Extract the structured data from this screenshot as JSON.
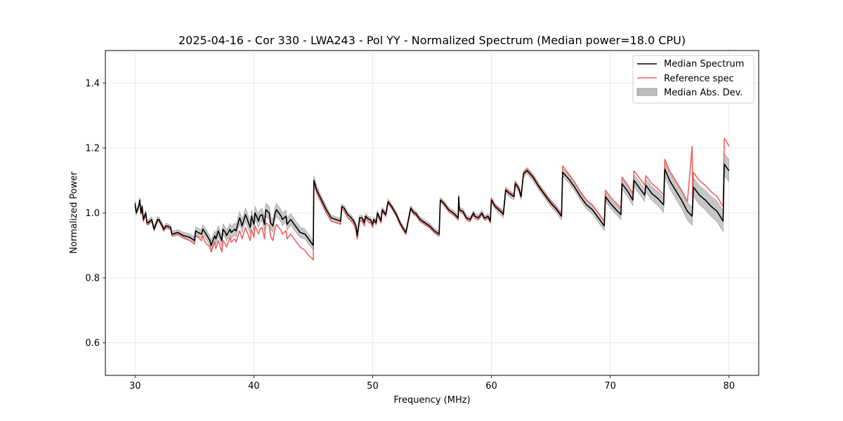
{
  "chart_data": {
    "type": "line",
    "title": "2025-04-16 - Cor 330 - LWA243 - Pol YY - Normalized Spectrum (Median power=18.0 CPU)",
    "xlabel": "Frequency (MHz)",
    "ylabel": "Normalized Power",
    "xlim": [
      27.5,
      82.5
    ],
    "ylim": [
      0.5,
      1.5
    ],
    "xticks": [
      30,
      40,
      50,
      60,
      70,
      80
    ],
    "yticks": [
      0.6,
      0.8,
      1.0,
      1.2,
      1.4
    ],
    "xtick_labels": [
      "30",
      "40",
      "50",
      "60",
      "70",
      "80"
    ],
    "ytick_labels": [
      "0.6",
      "0.8",
      "1.0",
      "1.2",
      "1.4"
    ],
    "grid": true,
    "legend_position": "top-right",
    "colors": {
      "median": "#000000",
      "reference": "#f06060",
      "mad_fill": "#bdbdbd",
      "mad_edge": "#9a9a9a",
      "overlap": "#8b1010"
    },
    "series": [
      {
        "name": "Median Spectrum",
        "x": [
          30.0,
          30.1,
          30.3,
          30.4,
          30.5,
          30.6,
          30.7,
          30.9,
          31.0,
          31.1,
          31.4,
          31.6,
          31.9,
          32.0,
          32.3,
          32.4,
          32.6,
          32.7,
          33.0,
          33.1,
          33.6,
          34.1,
          34.6,
          35.0,
          35.1,
          35.3,
          35.6,
          35.7,
          35.9,
          36.3,
          36.4,
          36.7,
          36.8,
          37.0,
          37.1,
          37.3,
          37.4,
          37.6,
          37.7,
          38.0,
          38.1,
          38.4,
          38.5,
          38.8,
          38.9,
          39.0,
          39.3,
          39.4,
          39.7,
          39.8,
          40.0,
          40.1,
          40.4,
          40.5,
          40.7,
          40.9,
          41.0,
          41.3,
          41.4,
          41.6,
          41.8,
          41.9,
          42.3,
          42.4,
          42.7,
          42.8,
          43.1,
          43.2,
          43.5,
          43.9,
          44.3,
          44.6,
          44.9,
          45.0,
          45.05,
          45.3,
          45.7,
          46.1,
          46.5,
          46.9,
          47.3,
          47.4,
          47.6,
          47.9,
          48.2,
          48.4,
          48.6,
          48.7,
          48.9,
          49.1,
          49.3,
          49.4,
          49.7,
          49.8,
          50.0,
          50.1,
          50.3,
          50.4,
          50.7,
          50.8,
          51.0,
          51.1,
          51.3,
          51.6,
          52.0,
          52.3,
          52.7,
          52.8,
          53.2,
          53.5,
          53.6,
          54.0,
          54.4,
          54.8,
          55.2,
          55.6,
          55.7,
          56.0,
          56.4,
          56.8,
          57.2,
          57.25,
          57.3,
          57.6,
          57.9,
          58.2,
          58.5,
          58.6,
          58.9,
          59.2,
          59.4,
          59.5,
          59.7,
          59.9,
          60.0,
          60.3,
          60.6,
          60.9,
          61.0,
          61.2,
          61.5,
          61.9,
          62.0,
          62.3,
          62.5,
          62.7,
          63.0,
          63.5,
          64.0,
          64.5,
          65.0,
          65.5,
          65.9,
          66.0,
          66.5,
          67.0,
          67.5,
          68.0,
          68.5,
          69.0,
          69.5,
          69.6,
          70.0,
          70.5,
          70.9,
          71.0,
          71.5,
          71.9,
          72.0,
          72.5,
          72.9,
          73.0,
          73.5,
          74.0,
          74.5,
          74.6,
          75.0,
          75.5,
          76.0,
          76.5,
          76.9,
          77.0,
          77.5,
          78.0,
          78.5,
          79.0,
          79.5,
          79.6,
          79.8,
          80.0
        ],
        "y": [
          1.03,
          1.0,
          1.02,
          1.04,
          1.0,
          1.02,
          0.98,
          1.0,
          0.97,
          0.97,
          0.98,
          0.95,
          0.98,
          0.98,
          0.96,
          0.95,
          0.96,
          0.96,
          0.955,
          0.935,
          0.94,
          0.93,
          0.925,
          0.915,
          0.945,
          0.94,
          0.935,
          0.95,
          0.94,
          0.915,
          0.9,
          0.93,
          0.92,
          0.945,
          0.935,
          0.915,
          0.95,
          0.94,
          0.93,
          0.95,
          0.94,
          0.95,
          0.945,
          0.985,
          0.975,
          0.96,
          0.995,
          0.985,
          0.955,
          0.99,
          0.965,
          1.0,
          0.975,
          0.99,
          0.995,
          0.965,
          1.01,
          1.0,
          0.97,
          0.96,
          1.0,
          1.01,
          0.99,
          0.98,
          0.99,
          0.965,
          0.98,
          0.975,
          0.96,
          0.94,
          0.935,
          0.92,
          0.905,
          0.9,
          1.1,
          1.07,
          1.04,
          1.01,
          0.985,
          0.98,
          0.975,
          1.02,
          1.015,
          0.995,
          0.985,
          0.975,
          0.96,
          0.93,
          0.985,
          0.985,
          0.97,
          0.99,
          0.98,
          0.98,
          0.965,
          0.98,
          0.97,
          1.0,
          0.975,
          1.01,
          1.0,
          0.995,
          1.035,
          1.02,
          0.995,
          0.97,
          0.945,
          0.94,
          1.015,
          1.0,
          1.0,
          0.98,
          0.97,
          0.96,
          0.945,
          0.935,
          1.04,
          1.03,
          1.01,
          1.0,
          0.985,
          1.05,
          1.01,
          1.005,
          0.985,
          0.98,
          1.0,
          0.99,
          0.985,
          1.0,
          0.985,
          0.985,
          0.99,
          0.975,
          1.04,
          1.02,
          1.01,
          1.0,
          0.995,
          1.07,
          1.06,
          1.05,
          1.09,
          1.075,
          1.05,
          1.12,
          1.13,
          1.11,
          1.08,
          1.055,
          1.03,
          1.01,
          0.99,
          1.125,
          1.105,
          1.08,
          1.05,
          1.025,
          1.01,
          0.985,
          0.96,
          1.05,
          1.03,
          1.01,
          0.995,
          1.09,
          1.065,
          1.04,
          1.1,
          1.075,
          1.055,
          1.085,
          1.06,
          1.045,
          1.025,
          1.135,
          1.1,
          1.07,
          1.04,
          1.005,
          0.99,
          1.08,
          1.055,
          1.04,
          1.02,
          1.005,
          0.975,
          1.15,
          1.14,
          1.13
        ]
      },
      {
        "name": "Reference spec",
        "x": [
          30.0,
          30.1,
          30.3,
          30.4,
          30.5,
          30.6,
          30.7,
          30.9,
          31.0,
          31.1,
          31.4,
          31.6,
          31.9,
          32.0,
          32.3,
          32.4,
          32.6,
          32.7,
          33.0,
          33.1,
          33.6,
          34.1,
          34.6,
          35.0,
          35.1,
          35.3,
          35.6,
          35.7,
          35.9,
          36.3,
          36.4,
          36.7,
          36.8,
          37.0,
          37.1,
          37.3,
          37.4,
          37.6,
          37.7,
          38.0,
          38.1,
          38.4,
          38.5,
          38.8,
          38.9,
          39.0,
          39.3,
          39.4,
          39.7,
          39.8,
          40.0,
          40.1,
          40.4,
          40.5,
          40.7,
          40.9,
          41.0,
          41.3,
          41.4,
          41.6,
          41.8,
          41.9,
          42.3,
          42.4,
          42.7,
          42.8,
          43.1,
          43.2,
          43.5,
          43.9,
          44.3,
          44.6,
          44.9,
          45.0,
          45.05,
          45.3,
          45.7,
          46.1,
          46.5,
          46.9,
          47.3,
          47.4,
          47.6,
          47.9,
          48.2,
          48.4,
          48.6,
          48.7,
          48.9,
          49.1,
          49.3,
          49.4,
          49.7,
          49.8,
          50.0,
          50.1,
          50.3,
          50.4,
          50.7,
          50.8,
          51.0,
          51.1,
          51.3,
          51.6,
          52.0,
          52.3,
          52.7,
          52.8,
          53.2,
          53.5,
          53.6,
          54.0,
          54.4,
          54.8,
          55.2,
          55.6,
          55.7,
          56.0,
          56.4,
          56.8,
          57.2,
          57.25,
          57.3,
          57.6,
          57.9,
          58.2,
          58.5,
          58.6,
          58.9,
          59.2,
          59.4,
          59.5,
          59.7,
          59.9,
          60.0,
          60.3,
          60.6,
          60.9,
          61.0,
          61.2,
          61.5,
          61.9,
          62.0,
          62.3,
          62.5,
          62.7,
          63.0,
          63.5,
          64.0,
          64.5,
          65.0,
          65.5,
          65.9,
          66.0,
          66.5,
          67.0,
          67.5,
          68.0,
          68.5,
          69.0,
          69.5,
          69.6,
          70.0,
          70.5,
          70.9,
          71.0,
          71.5,
          71.9,
          72.0,
          72.5,
          72.9,
          73.0,
          73.5,
          74.0,
          74.5,
          74.6,
          75.0,
          75.5,
          76.0,
          76.5,
          76.9,
          76.95,
          77.0,
          77.5,
          78.0,
          78.5,
          79.0,
          79.5,
          79.6,
          79.8,
          80.0
        ],
        "y": [
          1.02,
          1.0,
          1.02,
          1.035,
          0.995,
          1.015,
          0.975,
          0.995,
          0.965,
          0.965,
          0.975,
          0.95,
          0.975,
          0.975,
          0.955,
          0.945,
          0.955,
          0.955,
          0.95,
          0.93,
          0.935,
          0.925,
          0.915,
          0.905,
          0.93,
          0.925,
          0.915,
          0.93,
          0.91,
          0.895,
          0.88,
          0.91,
          0.89,
          0.915,
          0.905,
          0.88,
          0.915,
          0.905,
          0.895,
          0.925,
          0.91,
          0.92,
          0.91,
          0.945,
          0.935,
          0.92,
          0.955,
          0.945,
          0.915,
          0.95,
          0.925,
          0.96,
          0.935,
          0.95,
          0.955,
          0.92,
          0.97,
          0.96,
          0.93,
          0.915,
          0.955,
          0.965,
          0.945,
          0.935,
          0.945,
          0.92,
          0.935,
          0.93,
          0.915,
          0.895,
          0.885,
          0.87,
          0.86,
          0.855,
          1.1,
          1.06,
          1.03,
          1.0,
          0.975,
          0.97,
          0.965,
          1.015,
          1.005,
          0.985,
          0.975,
          0.965,
          0.945,
          0.92,
          0.975,
          0.975,
          0.96,
          0.985,
          0.97,
          0.97,
          0.955,
          0.975,
          0.965,
          0.995,
          0.97,
          1.005,
          0.995,
          0.99,
          1.03,
          1.015,
          0.99,
          0.965,
          0.94,
          0.935,
          1.01,
          0.995,
          0.995,
          0.975,
          0.965,
          0.955,
          0.94,
          0.93,
          1.04,
          1.025,
          1.005,
          0.995,
          0.98,
          1.045,
          1.005,
          1.0,
          0.98,
          0.975,
          0.995,
          0.985,
          0.98,
          0.995,
          0.98,
          0.98,
          0.985,
          0.97,
          1.045,
          1.025,
          1.015,
          1.005,
          1.0,
          1.075,
          1.065,
          1.055,
          1.095,
          1.08,
          1.055,
          1.125,
          1.135,
          1.115,
          1.085,
          1.06,
          1.035,
          1.015,
          0.995,
          1.145,
          1.12,
          1.095,
          1.065,
          1.04,
          1.025,
          1.0,
          0.975,
          1.07,
          1.05,
          1.03,
          1.015,
          1.11,
          1.085,
          1.06,
          1.13,
          1.105,
          1.085,
          1.115,
          1.09,
          1.075,
          1.055,
          1.165,
          1.13,
          1.1,
          1.07,
          1.035,
          1.205,
          1.02,
          1.125,
          1.1,
          1.085,
          1.065,
          1.05,
          1.02,
          1.23,
          1.22,
          1.205
        ]
      },
      {
        "name": "Median Abs. Dev.",
        "x": [
          30.0,
          31.0,
          32.0,
          33.0,
          34.0,
          35.0,
          36.0,
          37.0,
          38.0,
          39.0,
          40.0,
          41.0,
          42.0,
          43.0,
          44.0,
          45.0,
          46.0,
          47.0,
          48.0,
          49.0,
          50.0,
          51.0,
          52.0,
          53.0,
          54.0,
          55.0,
          56.0,
          57.0,
          58.0,
          59.0,
          60.0,
          61.0,
          62.0,
          63.0,
          64.0,
          65.0,
          66.0,
          67.0,
          68.0,
          69.0,
          70.0,
          71.0,
          72.0,
          73.0,
          74.0,
          75.0,
          76.0,
          77.0,
          78.0,
          79.0,
          80.0
        ],
        "dev": [
          0.008,
          0.008,
          0.008,
          0.008,
          0.01,
          0.012,
          0.014,
          0.016,
          0.018,
          0.02,
          0.02,
          0.02,
          0.02,
          0.018,
          0.016,
          0.014,
          0.01,
          0.008,
          0.008,
          0.008,
          0.008,
          0.008,
          0.008,
          0.008,
          0.008,
          0.008,
          0.008,
          0.008,
          0.008,
          0.008,
          0.008,
          0.01,
          0.01,
          0.01,
          0.01,
          0.01,
          0.012,
          0.012,
          0.012,
          0.014,
          0.014,
          0.016,
          0.018,
          0.02,
          0.022,
          0.024,
          0.026,
          0.028,
          0.03,
          0.032,
          0.034
        ]
      }
    ]
  }
}
